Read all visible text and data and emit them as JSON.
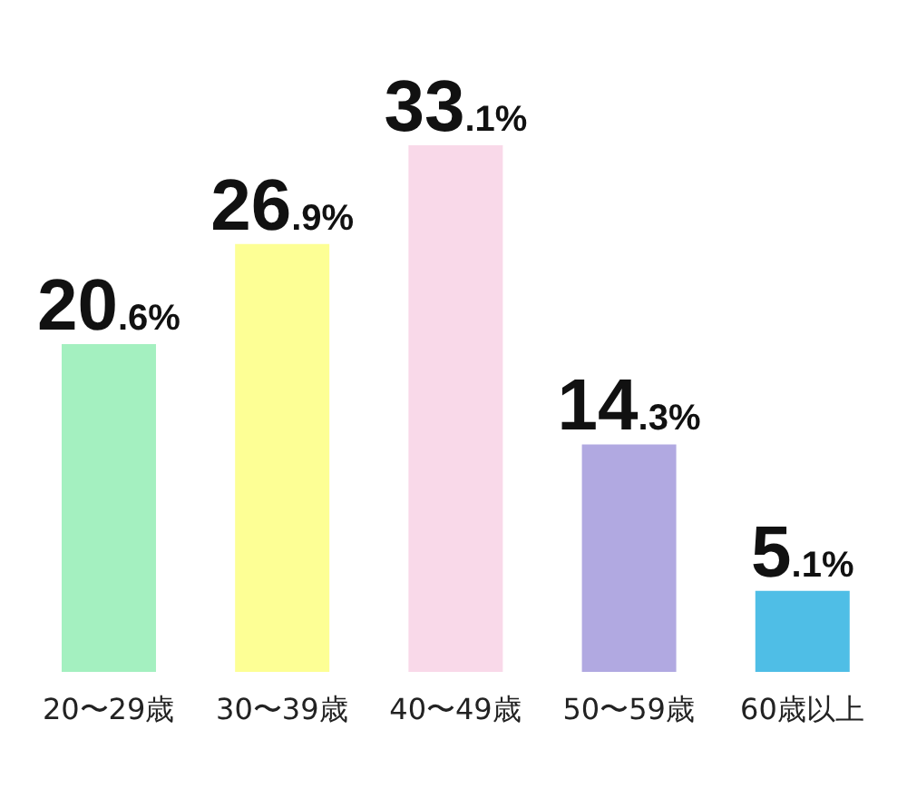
{
  "chart_data": {
    "type": "bar",
    "categories": [
      "20〜29歳",
      "30〜39歳",
      "40〜49歳",
      "50〜59歳",
      "60歳以上"
    ],
    "values": [
      20.6,
      26.9,
      33.1,
      14.3,
      5.1
    ],
    "colors": [
      "#a4f0c0",
      "#fdff95",
      "#f9d9e9",
      "#b1a9e1",
      "#4fbee6"
    ],
    "value_labels": [
      "20.6%",
      "26.9%",
      "33.1%",
      "14.3%",
      "5.1%"
    ]
  }
}
